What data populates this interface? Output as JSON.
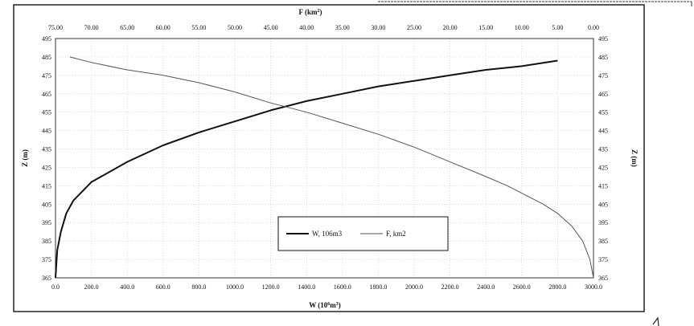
{
  "chart_data": {
    "type": "line",
    "title": "",
    "x_bottom": {
      "label_main": "W (10",
      "label_sup": "6",
      "label_tail": "m",
      "label_sup2": "3",
      "label_end": ")",
      "lim": [
        0,
        3000
      ],
      "ticks": [
        "0.0",
        "200.0",
        "400.0",
        "600.0",
        "800.0",
        "1000.0",
        "1200.0",
        "1400.0",
        "1600.0",
        "1800.0",
        "2000.0",
        "2200.0",
        "2400.0",
        "2600.0",
        "2800.0",
        "3000.0"
      ]
    },
    "x_top": {
      "label_main": "F (km",
      "label_sup": "2",
      "label_end": ")",
      "lim": [
        75,
        0
      ],
      "ticks": [
        "75.00",
        "70.00",
        "65.00",
        "60.00",
        "55.00",
        "50.00",
        "45.00",
        "40.00",
        "35.00",
        "30.00",
        "25.00",
        "20.00",
        "15.00",
        "10.00",
        "5.00",
        "0.00"
      ]
    },
    "y_left": {
      "label": "Z (m)",
      "lim": [
        365,
        495
      ],
      "ticks": [
        "365",
        "375",
        "385",
        "395",
        "405",
        "415",
        "425",
        "435",
        "445",
        "455",
        "465",
        "475",
        "485",
        "495"
      ]
    },
    "y_right": {
      "label": "Z (m)",
      "lim": [
        365,
        495
      ],
      "ticks": [
        "365",
        "375",
        "385",
        "395",
        "405",
        "415",
        "425",
        "435",
        "445",
        "455",
        "465",
        "475",
        "485",
        "495"
      ]
    },
    "grid": true,
    "legend": {
      "placement": "bottom-center"
    },
    "series": [
      {
        "name": "W, 106m3",
        "axis": "bottom",
        "color": "#111111",
        "points": [
          [
            0,
            365
          ],
          [
            10,
            380
          ],
          [
            30,
            390
          ],
          [
            60,
            400
          ],
          [
            100,
            407
          ],
          [
            200,
            417
          ],
          [
            400,
            428
          ],
          [
            600,
            437
          ],
          [
            800,
            444
          ],
          [
            1000,
            450
          ],
          [
            1200,
            456
          ],
          [
            1400,
            461
          ],
          [
            1600,
            465
          ],
          [
            1800,
            469
          ],
          [
            2000,
            472
          ],
          [
            2200,
            475
          ],
          [
            2400,
            478
          ],
          [
            2600,
            480
          ],
          [
            2800,
            483
          ]
        ]
      },
      {
        "name": "F, km2",
        "axis": "top",
        "color": "#555555",
        "points": [
          [
            73,
            485
          ],
          [
            70,
            482
          ],
          [
            65,
            478
          ],
          [
            60,
            475
          ],
          [
            55,
            471
          ],
          [
            50,
            466
          ],
          [
            45,
            460
          ],
          [
            40,
            455
          ],
          [
            35,
            449
          ],
          [
            30,
            443
          ],
          [
            25,
            436
          ],
          [
            20,
            428
          ],
          [
            15,
            420
          ],
          [
            12,
            415
          ],
          [
            10,
            411
          ],
          [
            7,
            405
          ],
          [
            5,
            400
          ],
          [
            3,
            393
          ],
          [
            1.5,
            385
          ],
          [
            0.5,
            375
          ],
          [
            0,
            365
          ]
        ]
      }
    ]
  }
}
